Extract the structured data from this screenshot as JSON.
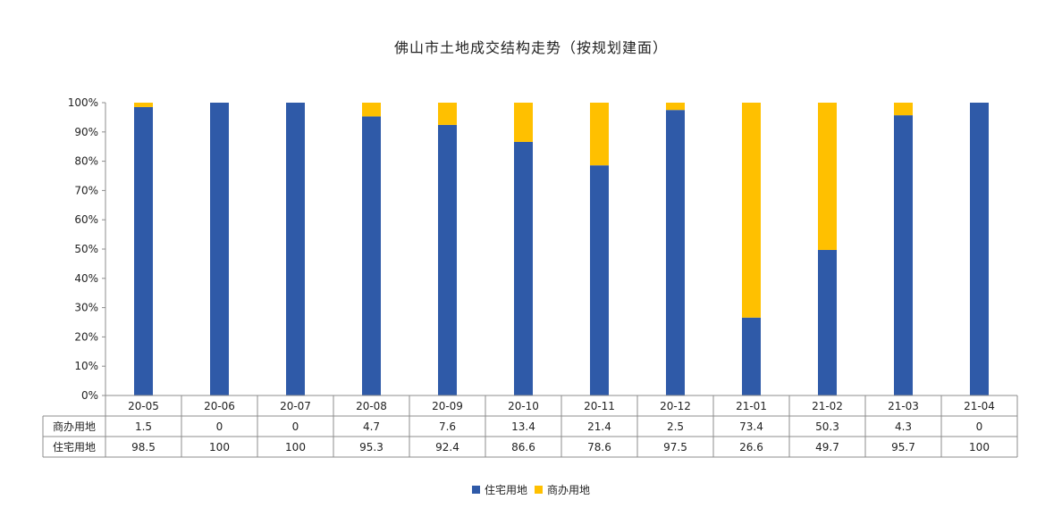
{
  "chart_data": {
    "type": "bar",
    "stacked": true,
    "title": "佛山市土地成交结构走势（按规划建面）",
    "categories": [
      "20-05",
      "20-06",
      "20-07",
      "20-08",
      "20-09",
      "20-10",
      "20-11",
      "20-12",
      "21-01",
      "21-02",
      "21-03",
      "21-04"
    ],
    "y_ticks": [
      "0%",
      "10%",
      "20%",
      "30%",
      "40%",
      "50%",
      "60%",
      "70%",
      "80%",
      "90%",
      "100%"
    ],
    "ylim": [
      0,
      100
    ],
    "series": [
      {
        "name": "住宅用地",
        "color": "#2f5aa8",
        "values": [
          98.5,
          100,
          100,
          95.3,
          92.4,
          86.6,
          78.6,
          97.5,
          26.6,
          49.7,
          95.7,
          100
        ],
        "labels": [
          "98.5",
          "100",
          "100",
          "95.3",
          "92.4",
          "86.6",
          "78.6",
          "97.5",
          "26.6",
          "49.7",
          "95.7",
          "100"
        ]
      },
      {
        "name": "商办用地",
        "color": "#ffc000",
        "values": [
          1.5,
          0,
          0,
          4.7,
          7.6,
          13.4,
          21.4,
          2.5,
          73.4,
          50.3,
          4.3,
          0
        ],
        "labels": [
          "1.5",
          "0",
          "0",
          "4.7",
          "7.6",
          "13.4",
          "21.4",
          "2.5",
          "73.4",
          "50.3",
          "4.3",
          "0"
        ]
      }
    ],
    "table_row_order": [
      1,
      0
    ],
    "legend_order": [
      0,
      1
    ],
    "legend_position": "bottom",
    "grid": false
  }
}
